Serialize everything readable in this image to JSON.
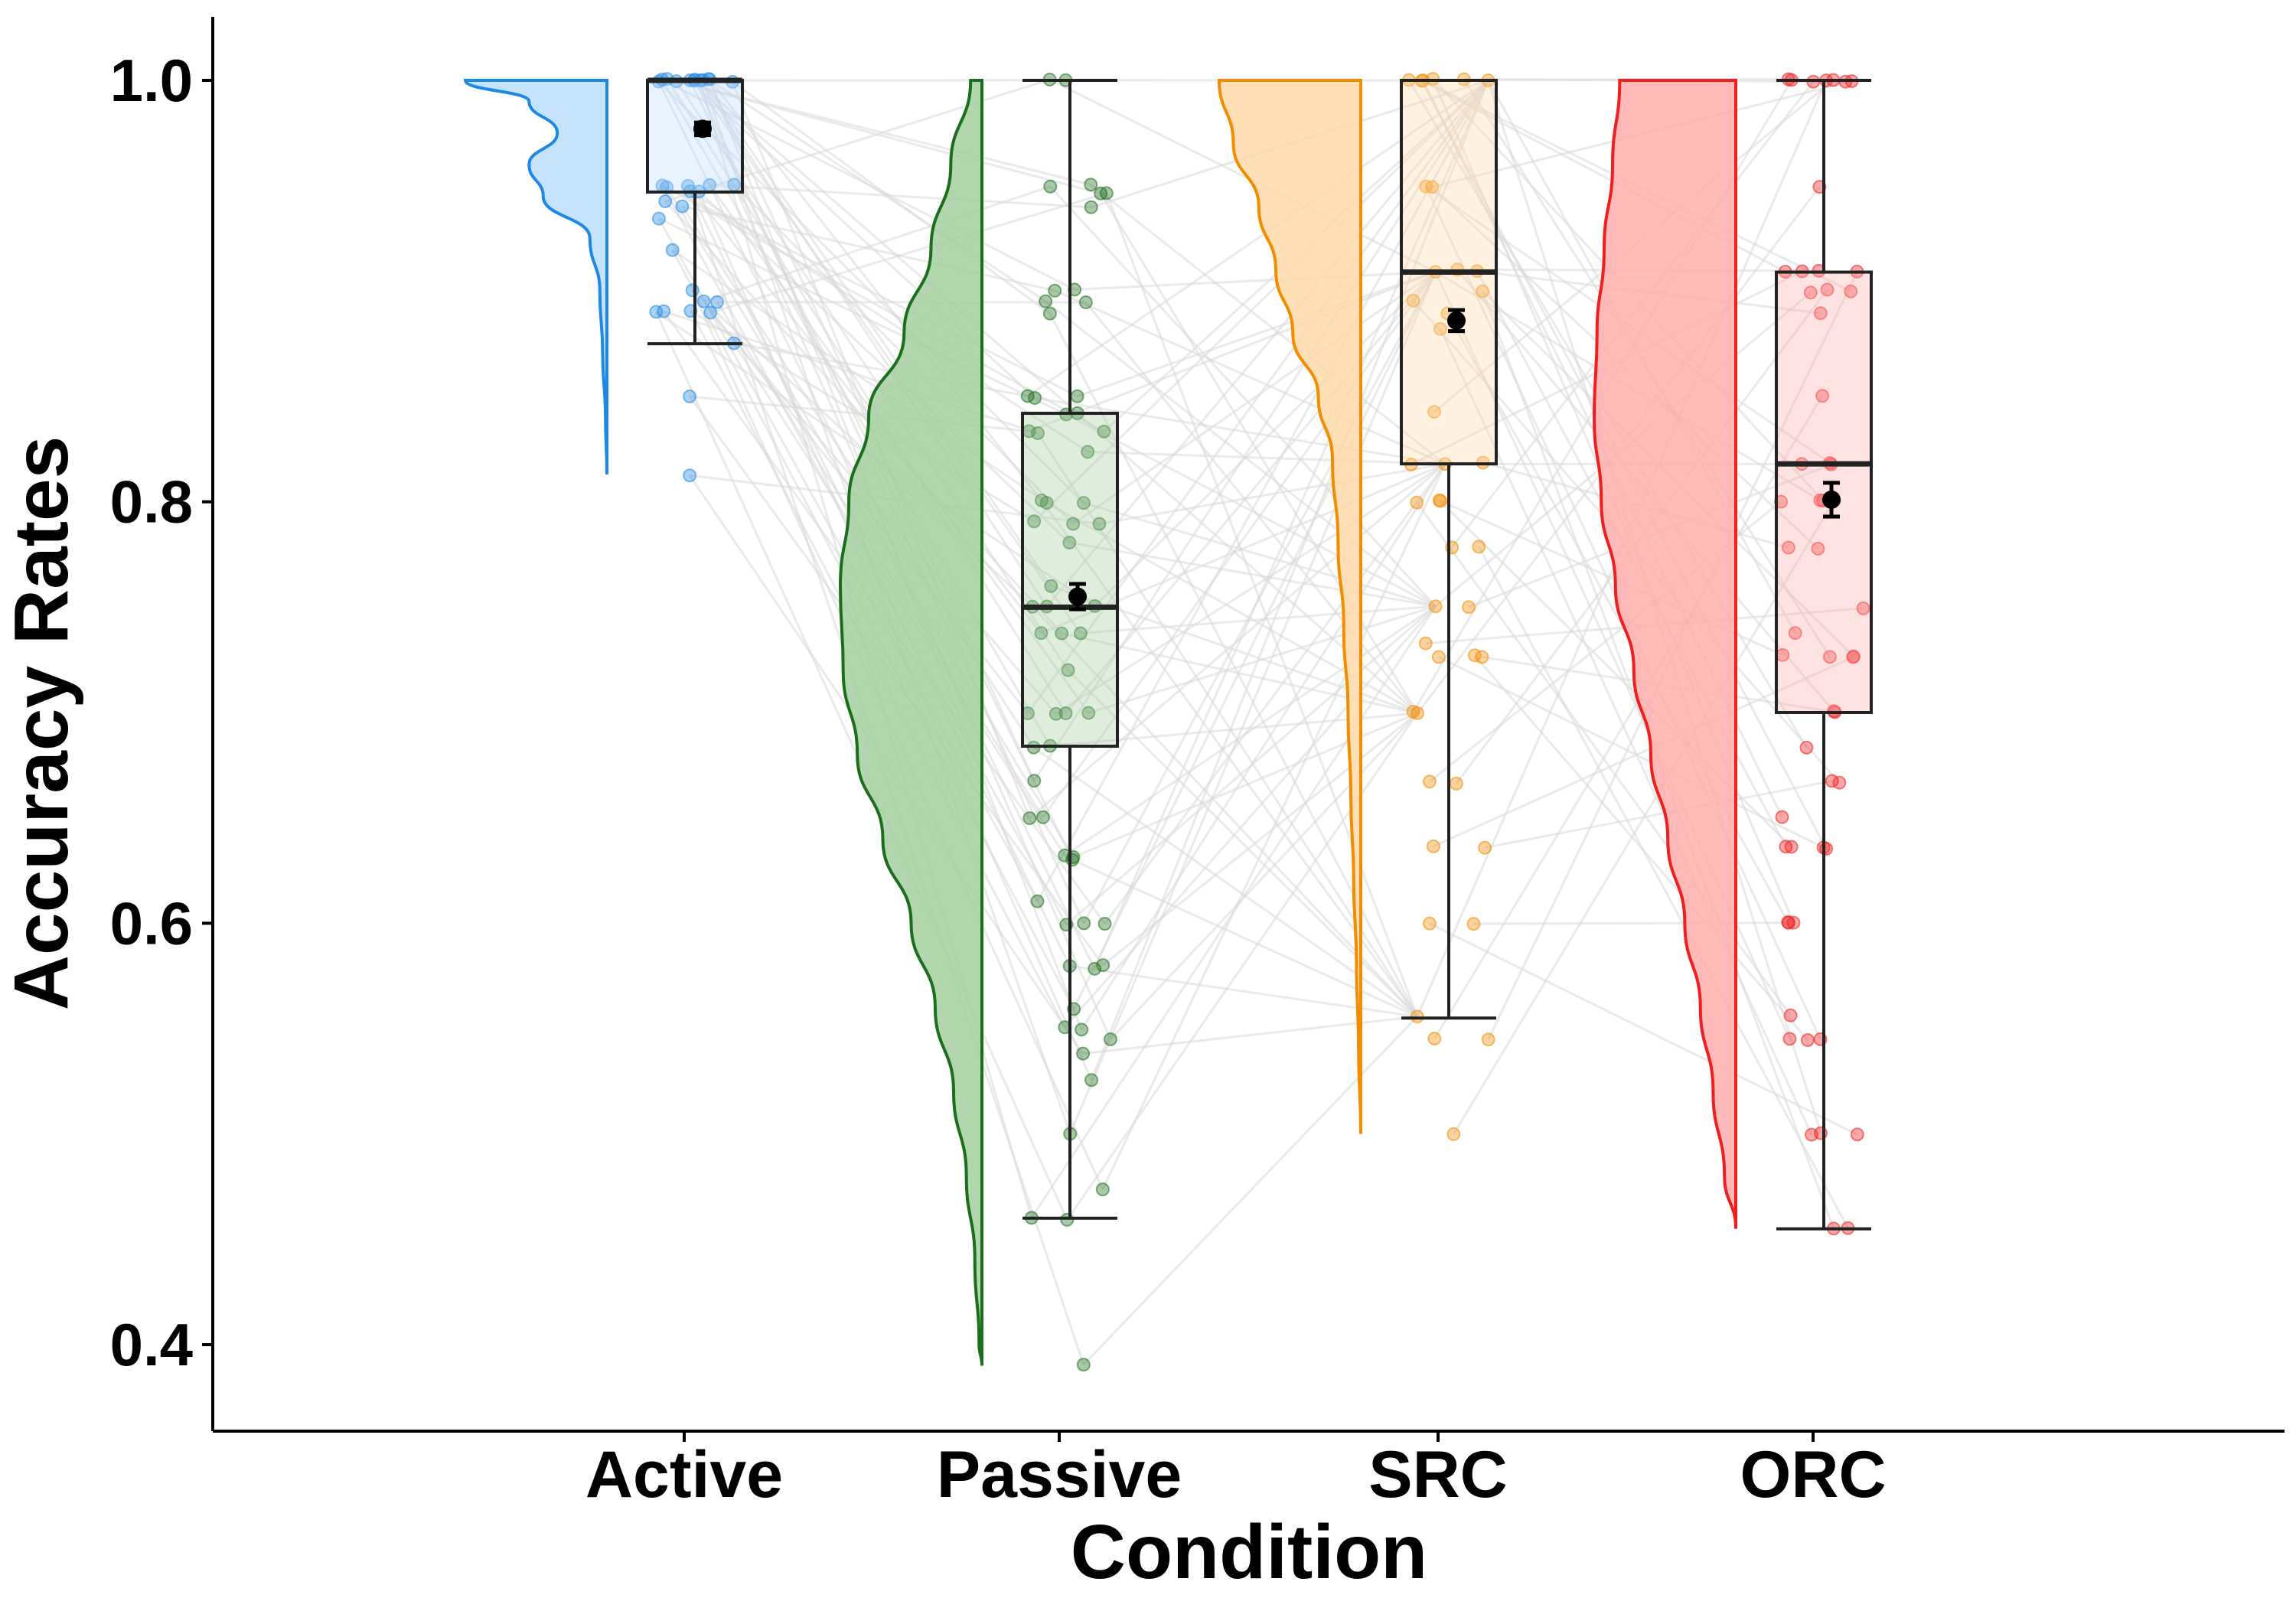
{
  "chart_data": {
    "type": "raincloud",
    "xlabel": "Condition",
    "ylabel": "Accuracy Rates",
    "ylim": [
      0.36,
      1.03
    ],
    "yticks": [
      0.4,
      0.6,
      0.8,
      1.0
    ],
    "ytick_labels": [
      "0.4",
      "0.6",
      "0.8",
      "1.0"
    ],
    "grid": false,
    "legend": "none",
    "categories": [
      "Active",
      "Passive",
      "SRC",
      "ORC"
    ],
    "series": [
      {
        "category": "Active",
        "color": "#1E88E5",
        "fill": "#BBDEFB",
        "box": {
          "min": 0.875,
          "q1": 0.947,
          "median": 1.0,
          "q3": 1.0,
          "max": 1.0
        },
        "mean": 0.977,
        "se": 0.003,
        "density": [
          [
            1.0,
            1.0
          ],
          [
            0.99,
            0.55
          ],
          [
            0.975,
            0.35
          ],
          [
            0.96,
            0.55
          ],
          [
            0.945,
            0.45
          ],
          [
            0.925,
            0.12
          ],
          [
            0.9,
            0.05
          ],
          [
            0.87,
            0.03
          ],
          [
            0.84,
            0.01
          ],
          [
            0.813,
            0.0
          ]
        ],
        "points": [
          1.0,
          1.0,
          1.0,
          1.0,
          1.0,
          1.0,
          1.0,
          1.0,
          1.0,
          1.0,
          1.0,
          1.0,
          0.95,
          0.95,
          0.95,
          0.95,
          0.95,
          0.947,
          0.947,
          0.943,
          0.94,
          0.935,
          0.92,
          0.9,
          0.895,
          0.895,
          0.89,
          0.89,
          0.89,
          0.89,
          0.875,
          0.85,
          0.813
        ]
      },
      {
        "category": "Passive",
        "color": "#1B6E1B",
        "fill": "#A5CFA0",
        "box": {
          "min": 0.46,
          "q1": 0.684,
          "median": 0.75,
          "q3": 0.842,
          "max": 1.0
        },
        "mean": 0.755,
        "se": 0.006,
        "density": [
          [
            1.0,
            0.08
          ],
          [
            0.96,
            0.22
          ],
          [
            0.92,
            0.36
          ],
          [
            0.88,
            0.55
          ],
          [
            0.84,
            0.8
          ],
          [
            0.8,
            0.94
          ],
          [
            0.76,
            1.0
          ],
          [
            0.72,
            0.98
          ],
          [
            0.68,
            0.88
          ],
          [
            0.64,
            0.7
          ],
          [
            0.6,
            0.5
          ],
          [
            0.56,
            0.33
          ],
          [
            0.52,
            0.2
          ],
          [
            0.48,
            0.11
          ],
          [
            0.44,
            0.05
          ],
          [
            0.4,
            0.02
          ],
          [
            0.39,
            0.0
          ]
        ],
        "points": [
          1.0,
          1.0,
          0.95,
          0.95,
          0.947,
          0.947,
          0.94,
          0.9,
          0.9,
          0.895,
          0.895,
          0.89,
          0.85,
          0.85,
          0.85,
          0.842,
          0.842,
          0.833,
          0.833,
          0.833,
          0.824,
          0.8,
          0.8,
          0.8,
          0.79,
          0.79,
          0.789,
          0.78,
          0.76,
          0.75,
          0.75,
          0.75,
          0.737,
          0.737,
          0.737,
          0.72,
          0.7,
          0.7,
          0.7,
          0.7,
          0.684,
          0.684,
          0.667,
          0.65,
          0.65,
          0.632,
          0.632,
          0.63,
          0.611,
          0.6,
          0.6,
          0.6,
          0.58,
          0.58,
          0.579,
          0.56,
          0.55,
          0.55,
          0.545,
          0.538,
          0.526,
          0.5,
          0.474,
          0.46,
          0.46,
          0.39
        ]
      },
      {
        "category": "SRC",
        "color": "#F28C00",
        "fill": "#FFD9A8",
        "box": {
          "min": 0.555,
          "q1": 0.818,
          "median": 0.909,
          "q3": 1.0,
          "max": 1.0
        },
        "mean": 0.886,
        "se": 0.005,
        "density": [
          [
            1.0,
            1.0
          ],
          [
            0.97,
            0.9
          ],
          [
            0.94,
            0.72
          ],
          [
            0.91,
            0.6
          ],
          [
            0.88,
            0.48
          ],
          [
            0.85,
            0.3
          ],
          [
            0.82,
            0.2
          ],
          [
            0.78,
            0.16
          ],
          [
            0.74,
            0.12
          ],
          [
            0.7,
            0.09
          ],
          [
            0.66,
            0.07
          ],
          [
            0.62,
            0.05
          ],
          [
            0.58,
            0.03
          ],
          [
            0.54,
            0.015
          ],
          [
            0.5,
            0.0
          ]
        ],
        "points": [
          1.0,
          1.0,
          1.0,
          1.0,
          1.0,
          1.0,
          0.95,
          0.95,
          0.91,
          0.909,
          0.909,
          0.9,
          0.895,
          0.889,
          0.882,
          0.842,
          0.818,
          0.818,
          0.818,
          0.8,
          0.8,
          0.8,
          0.778,
          0.778,
          0.75,
          0.75,
          0.733,
          0.727,
          0.727,
          0.727,
          0.7,
          0.7,
          0.667,
          0.667,
          0.636,
          0.636,
          0.6,
          0.6,
          0.556,
          0.545,
          0.545,
          0.5
        ]
      },
      {
        "category": "ORC",
        "color": "#F01E1E",
        "fill": "#FFADAD",
        "box": {
          "min": 0.455,
          "q1": 0.7,
          "median": 0.818,
          "q3": 0.909,
          "max": 1.0
        },
        "mean": 0.801,
        "se": 0.008,
        "density": [
          [
            1.0,
            0.82
          ],
          [
            0.96,
            0.87
          ],
          [
            0.92,
            0.93
          ],
          [
            0.88,
            0.98
          ],
          [
            0.84,
            1.0
          ],
          [
            0.8,
            0.95
          ],
          [
            0.76,
            0.85
          ],
          [
            0.72,
            0.72
          ],
          [
            0.68,
            0.6
          ],
          [
            0.64,
            0.48
          ],
          [
            0.6,
            0.36
          ],
          [
            0.56,
            0.25
          ],
          [
            0.52,
            0.16
          ],
          [
            0.48,
            0.08
          ],
          [
            0.455,
            0.0
          ]
        ],
        "points": [
          1.0,
          1.0,
          1.0,
          1.0,
          1.0,
          1.0,
          1.0,
          0.95,
          0.909,
          0.909,
          0.909,
          0.909,
          0.9,
          0.9,
          0.9,
          0.889,
          0.85,
          0.818,
          0.818,
          0.818,
          0.8,
          0.8,
          0.8,
          0.8,
          0.778,
          0.778,
          0.75,
          0.737,
          0.727,
          0.727,
          0.727,
          0.727,
          0.7,
          0.7,
          0.684,
          0.667,
          0.667,
          0.65,
          0.636,
          0.636,
          0.636,
          0.636,
          0.6,
          0.6,
          0.6,
          0.556,
          0.545,
          0.545,
          0.545,
          0.5,
          0.5,
          0.5,
          0.455,
          0.455
        ]
      }
    ]
  }
}
